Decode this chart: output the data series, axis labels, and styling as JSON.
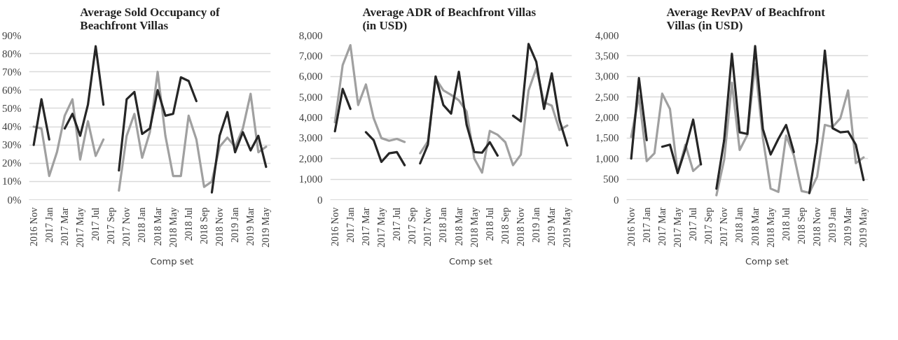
{
  "chart_data": [
    {
      "type": "line",
      "title": "Average Sold Occupancy of\nBeachfront Villas",
      "categories": [
        "2016 Nov",
        null,
        "2017 Jan",
        null,
        "2017 Mar",
        null,
        "2017 May",
        null,
        "2017 Jul",
        null,
        "2017 Sep",
        null,
        "2017 Nov",
        null,
        "2018 Jan",
        null,
        "2018 Mar",
        null,
        "2018 May",
        null,
        "2018 Jul",
        null,
        "2018 Sep",
        null,
        "2018 Nov",
        null,
        "2019 Jan",
        null,
        "2019 Mar",
        null,
        "2019 May"
      ],
      "series": [
        {
          "name": "Comp set",
          "color": "#a0a0a0",
          "values": [
            40,
            39,
            13,
            26,
            46,
            55,
            22,
            43,
            24,
            33,
            null,
            5,
            35,
            47,
            23,
            37,
            70,
            35,
            13,
            13,
            46,
            33,
            7,
            10,
            29,
            34,
            29,
            39,
            58,
            26,
            29
          ]
        },
        {
          "color": "#262626",
          "values": [
            30,
            55,
            33,
            null,
            39,
            47,
            35,
            52,
            84,
            52,
            null,
            16,
            55,
            59,
            36,
            39,
            60,
            46,
            47,
            67,
            65,
            54,
            null,
            4,
            35,
            48,
            26,
            37,
            27,
            35,
            18
          ]
        }
      ],
      "ylim": [
        0,
        90
      ],
      "yticks": [
        {
          "value": 0,
          "label": "0%"
        },
        {
          "value": 10,
          "label": "10%"
        },
        {
          "value": 20,
          "label": "20%"
        },
        {
          "value": 30,
          "label": "30%"
        },
        {
          "value": 40,
          "label": "40%"
        },
        {
          "value": 50,
          "label": "50%"
        },
        {
          "value": 60,
          "label": "60%"
        },
        {
          "value": 70,
          "label": "70%"
        },
        {
          "value": 80,
          "label": "80%"
        },
        {
          "value": 90,
          "label": "90%"
        }
      ],
      "grid": "y",
      "legend": "bottom",
      "line_style": "solid",
      "marker": "none"
    },
    {
      "type": "line",
      "title": "Average  ADR of Beachfront Villas\n(in USD)",
      "categories": [
        "2016 Nov",
        null,
        "2017 Jan",
        null,
        "2017 Mar",
        null,
        "2017 May",
        null,
        "2017 Jul",
        null,
        "2017 Sep",
        null,
        "2017 Nov",
        null,
        "2018 Jan",
        null,
        "2018 Mar",
        null,
        "2018 May",
        null,
        "2018 Jul",
        null,
        "2018 Sep",
        null,
        "2018 Nov",
        null,
        "2019 Jan",
        null,
        "2019 Mar",
        null,
        "2019 May"
      ],
      "series": [
        {
          "name": "Comp set",
          "color": "#a0a0a0",
          "values": [
            3770,
            6550,
            7520,
            4610,
            5610,
            3970,
            3000,
            2870,
            2960,
            2810,
            null,
            2260,
            2840,
            5900,
            5320,
            5100,
            4840,
            4290,
            2000,
            1320,
            3350,
            3160,
            2800,
            1680,
            2190,
            5320,
            6390,
            4740,
            4580,
            3390,
            3610
          ]
        },
        {
          "color": "#262626",
          "values": [
            3330,
            5390,
            4420,
            null,
            3290,
            2900,
            1840,
            2260,
            2320,
            1680,
            null,
            1770,
            2680,
            6000,
            4610,
            4190,
            6230,
            3650,
            2320,
            2290,
            2800,
            2150,
            null,
            4090,
            3810,
            7580,
            6710,
            4420,
            6150,
            3870,
            2640
          ]
        }
      ],
      "ylim": [
        0,
        8000
      ],
      "yticks": [
        0,
        {
          "value": 1000,
          "label": "1,000"
        },
        {
          "value": 2000,
          "label": "2,000"
        },
        {
          "value": 3000,
          "label": "3,000"
        },
        {
          "value": 4000,
          "label": "4,000"
        },
        {
          "value": 5000,
          "label": "5,000"
        },
        {
          "value": 6000,
          "label": "6,000"
        },
        {
          "value": 7000,
          "label": "7,000"
        },
        {
          "value": 8000,
          "label": "8,000"
        }
      ],
      "grid": "y",
      "legend": "bottom",
      "line_style": "solid",
      "marker": "none"
    },
    {
      "type": "line",
      "title": "Average  RevPAV of Beachfront\nVillas (in USD)",
      "categories": [
        "2016 Nov",
        null,
        "2017 Jan",
        null,
        "2017 Mar",
        null,
        "2017 May",
        null,
        "2017 Jul",
        null,
        "2017 Sep",
        null,
        "2017 Nov",
        null,
        "2018 Jan",
        null,
        "2018 Mar",
        null,
        "2018 May",
        null,
        "2018 Jul",
        null,
        "2018 Sep",
        null,
        "2018 Nov",
        null,
        "2019 Jan",
        null,
        "2019 Mar",
        null,
        "2019 May"
      ],
      "series": [
        {
          "name": "Comp set",
          "color": "#a0a0a0",
          "values": [
            1530,
            2530,
            940,
            1130,
            2580,
            2210,
            650,
            1340,
            700,
            870,
            null,
            110,
            970,
            2850,
            1210,
            1580,
            3300,
            1500,
            270,
            190,
            1560,
            1080,
            210,
            170,
            560,
            1820,
            1770,
            1980,
            2660,
            890,
            1030
          ]
        },
        {
          "color": "#262626",
          "values": [
            1000,
            2960,
            1450,
            null,
            1290,
            1340,
            650,
            1240,
            1950,
            860,
            null,
            270,
            1450,
            3550,
            1640,
            1600,
            3740,
            1720,
            1100,
            1480,
            1820,
            1160,
            null,
            160,
            1400,
            3630,
            1740,
            1640,
            1660,
            1340,
            480
          ]
        }
      ],
      "ylim": [
        0,
        4000
      ],
      "yticks": [
        0,
        500,
        {
          "value": 1000,
          "label": "1,000"
        },
        {
          "value": 1500,
          "label": "1,500"
        },
        {
          "value": 2000,
          "label": "2,000"
        },
        {
          "value": 2500,
          "label": "2,500"
        },
        {
          "value": 3000,
          "label": "3,000"
        },
        {
          "value": 3500,
          "label": "3,500"
        },
        {
          "value": 4000,
          "label": "4,000"
        }
      ],
      "grid": "y",
      "legend": "bottom",
      "line_style": "solid",
      "marker": "none"
    }
  ]
}
